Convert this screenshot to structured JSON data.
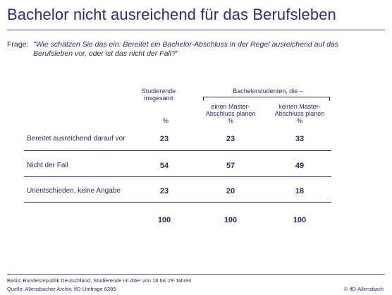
{
  "title": "Bachelor nicht ausreichend für das Berufsleben",
  "question": {
    "label": "Frage:",
    "text": "\"Wie schätzen Sie das ein: Bereitet ein Bachelor-Abschluss in der Regel ausreichend auf das Berufsleben vor, oder ist das nicht der Fall?\""
  },
  "table": {
    "col1_header_line1": "Studierende",
    "col1_header_line2": "insgesamt",
    "group_header": "Bachelorstudenten, die –",
    "col2_header_line1": "einen Master-",
    "col2_header_line2": "Abschluss planen",
    "col3_header_line1": "keinen Master-",
    "col3_header_line2": "Abschluss planen",
    "unit": "%",
    "rows": [
      {
        "label": "Bereitet ausreichend darauf vor",
        "values": [
          "23",
          "23",
          "33"
        ]
      },
      {
        "label": "Nicht der Fall",
        "values": [
          "54",
          "57",
          "49"
        ]
      },
      {
        "label": "Unentschieden, keine Angabe",
        "values": [
          "23",
          "20",
          "18"
        ]
      }
    ],
    "totals": [
      "100",
      "100",
      "100"
    ]
  },
  "footer": {
    "basis": "Basis: Bundesrepublik Deutschland, Studierende im Alter von 18 bis 29 Jahren",
    "source": "Quelle: Allensbacher Archiv, IfD-Umfrage 6285",
    "copyright": "© IfD-Allensbach"
  }
}
